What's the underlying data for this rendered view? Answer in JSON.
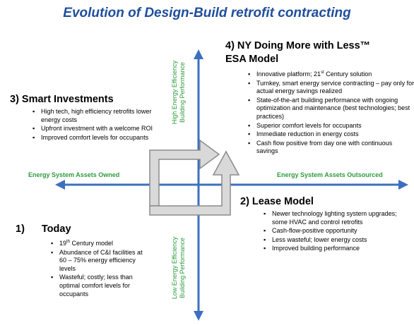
{
  "title": "Evolution of Design-Build retrofit contracting",
  "axes": {
    "left": "Energy System Assets Owned",
    "right": "Energy System Assets Outsourced",
    "up_line1": "High Energy Efficiency",
    "up_line2": "Building Performance",
    "down_line1": "Low Energy Efficiency",
    "down_line2": "Building Performance"
  },
  "colors": {
    "title": "#1f4e9c",
    "axis": "#3d6fc0",
    "axis_label": "#2e9b3f",
    "arrow_fill": "#d9d9d9",
    "arrow_stroke": "#8c8c8c"
  },
  "quadrants": {
    "q1": {
      "number": "1)",
      "title": "Today",
      "bullets": [
        {
          "pre": "19",
          "sup": "th",
          "post": " Century model"
        },
        {
          "pre": "Abundance of C&I facilities at 60 – 75% energy efficiency levels"
        },
        {
          "pre": "Wasteful; costly; less than optimal comfort levels for occupants"
        }
      ]
    },
    "q2": {
      "title": "2) Lease Model",
      "bullets": [
        {
          "pre": "Newer technology lighting system upgrades; some HVAC and control retrofits"
        },
        {
          "pre": "Cash-flow-positive opportunity"
        },
        {
          "pre": "Less wasteful; lower energy costs"
        },
        {
          "pre": "Improved building performance"
        }
      ]
    },
    "q3": {
      "title": "3) Smart Investments",
      "bullets": [
        {
          "pre": "High tech, high efficiency retrofits lower energy costs"
        },
        {
          "pre": "Upfront investment with a welcome ROI"
        },
        {
          "pre": "Improved comfort levels for occupants"
        }
      ]
    },
    "q4": {
      "title_line1": "4) NY Doing More with Less™",
      "title_line2": "ESA Model",
      "bullets": [
        {
          "pre": "Innovative platform; 21",
          "sup": "st",
          "post": " Century solution"
        },
        {
          "pre": "Turnkey, smart energy service contracting – pay only for actual energy savings realized"
        },
        {
          "pre": "State-of-the-art building performance with ongoing optimization and maintenance (best technologies; best practices)"
        },
        {
          "pre": "Superior comfort levels for occupants"
        },
        {
          "pre": "Immediate reduction in energy costs"
        },
        {
          "pre": "Cash flow positive from day one with continuous savings"
        }
      ]
    }
  }
}
